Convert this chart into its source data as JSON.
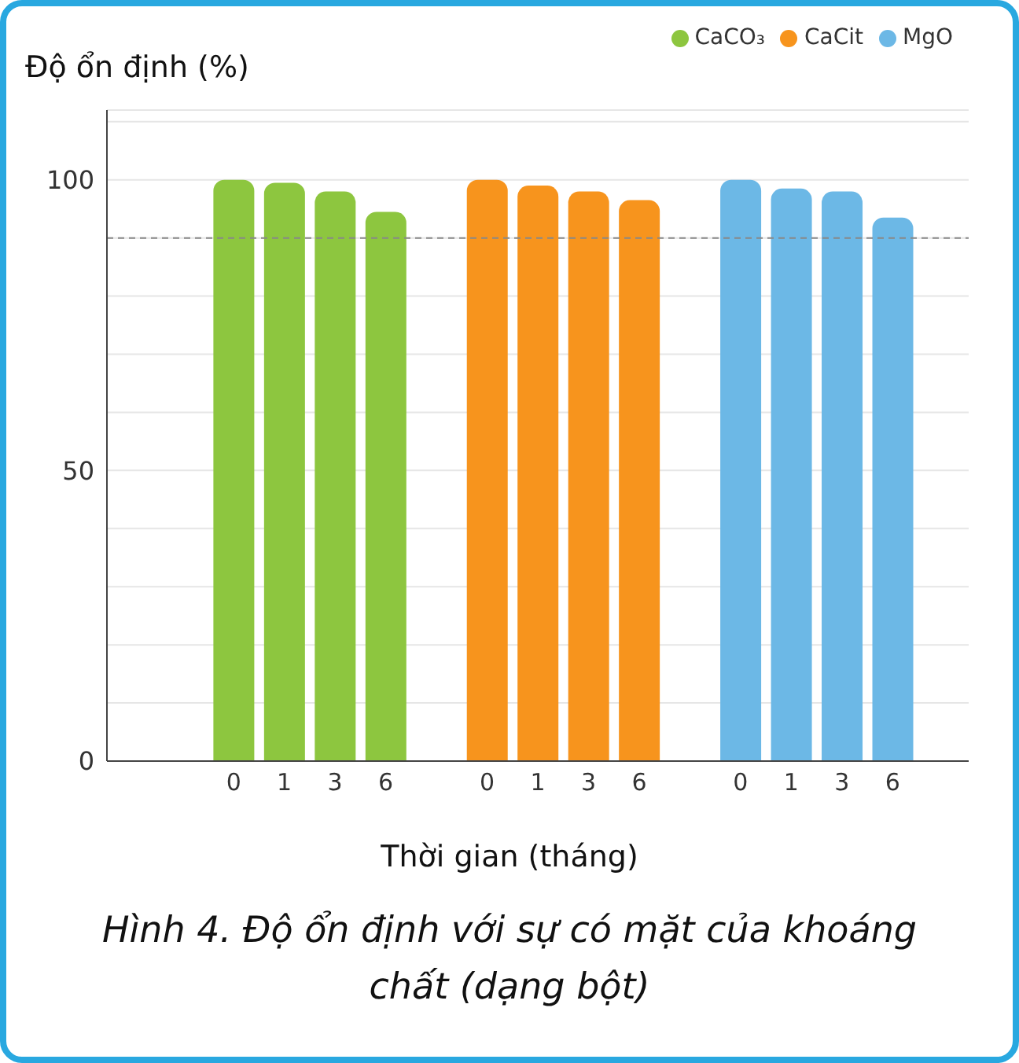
{
  "chart_data": {
    "type": "bar",
    "stacked": true,
    "ylabel": "Độ ổn định (%)",
    "xlabel": "Thời gian (tháng)",
    "categories": [
      null,
      null,
      "0",
      "1",
      "3",
      "6",
      null,
      "0",
      "1",
      "3",
      "6",
      null,
      "0",
      "1",
      "3",
      "6",
      null
    ],
    "series": [
      {
        "name": "CaCO₃",
        "color": "#8dc63f",
        "values": [
          null,
          null,
          100,
          99.5,
          98,
          94.5,
          null,
          null,
          null,
          null,
          null,
          null,
          null,
          null,
          null,
          null,
          null
        ]
      },
      {
        "name": "CaCit",
        "color": "#f7941d",
        "values": [
          null,
          null,
          null,
          null,
          null,
          null,
          null,
          100,
          99,
          98,
          96.5,
          null,
          null,
          null,
          null,
          null,
          null
        ]
      },
      {
        "name": "MgO",
        "color": "#6cb8e6",
        "values": [
          null,
          null,
          null,
          null,
          null,
          null,
          null,
          null,
          null,
          null,
          null,
          null,
          100,
          98.5,
          98,
          93.5,
          null
        ]
      }
    ],
    "ylim": [
      0,
      112
    ],
    "yticks": [
      0,
      {
        "value": 10,
        "label": null
      },
      {
        "value": 20,
        "label": null
      },
      {
        "value": 30,
        "label": null
      },
      {
        "value": 40,
        "label": null
      },
      50,
      {
        "value": 60,
        "label": null
      },
      {
        "value": 70,
        "label": null
      },
      {
        "value": 80,
        "label": null
      },
      {
        "value": 90,
        "label": null
      },
      100,
      {
        "value": 110,
        "label": null
      }
    ],
    "grid": "y",
    "legend": "top right",
    "ref_lines": [
      {
        "axis": "y",
        "value": 90,
        "color": "#888888",
        "line_style": "dashed"
      }
    ],
    "annotations": [
      "Hình 4. Độ ổn định với sự có mặt của khoáng chất (dạng bột)"
    ]
  }
}
